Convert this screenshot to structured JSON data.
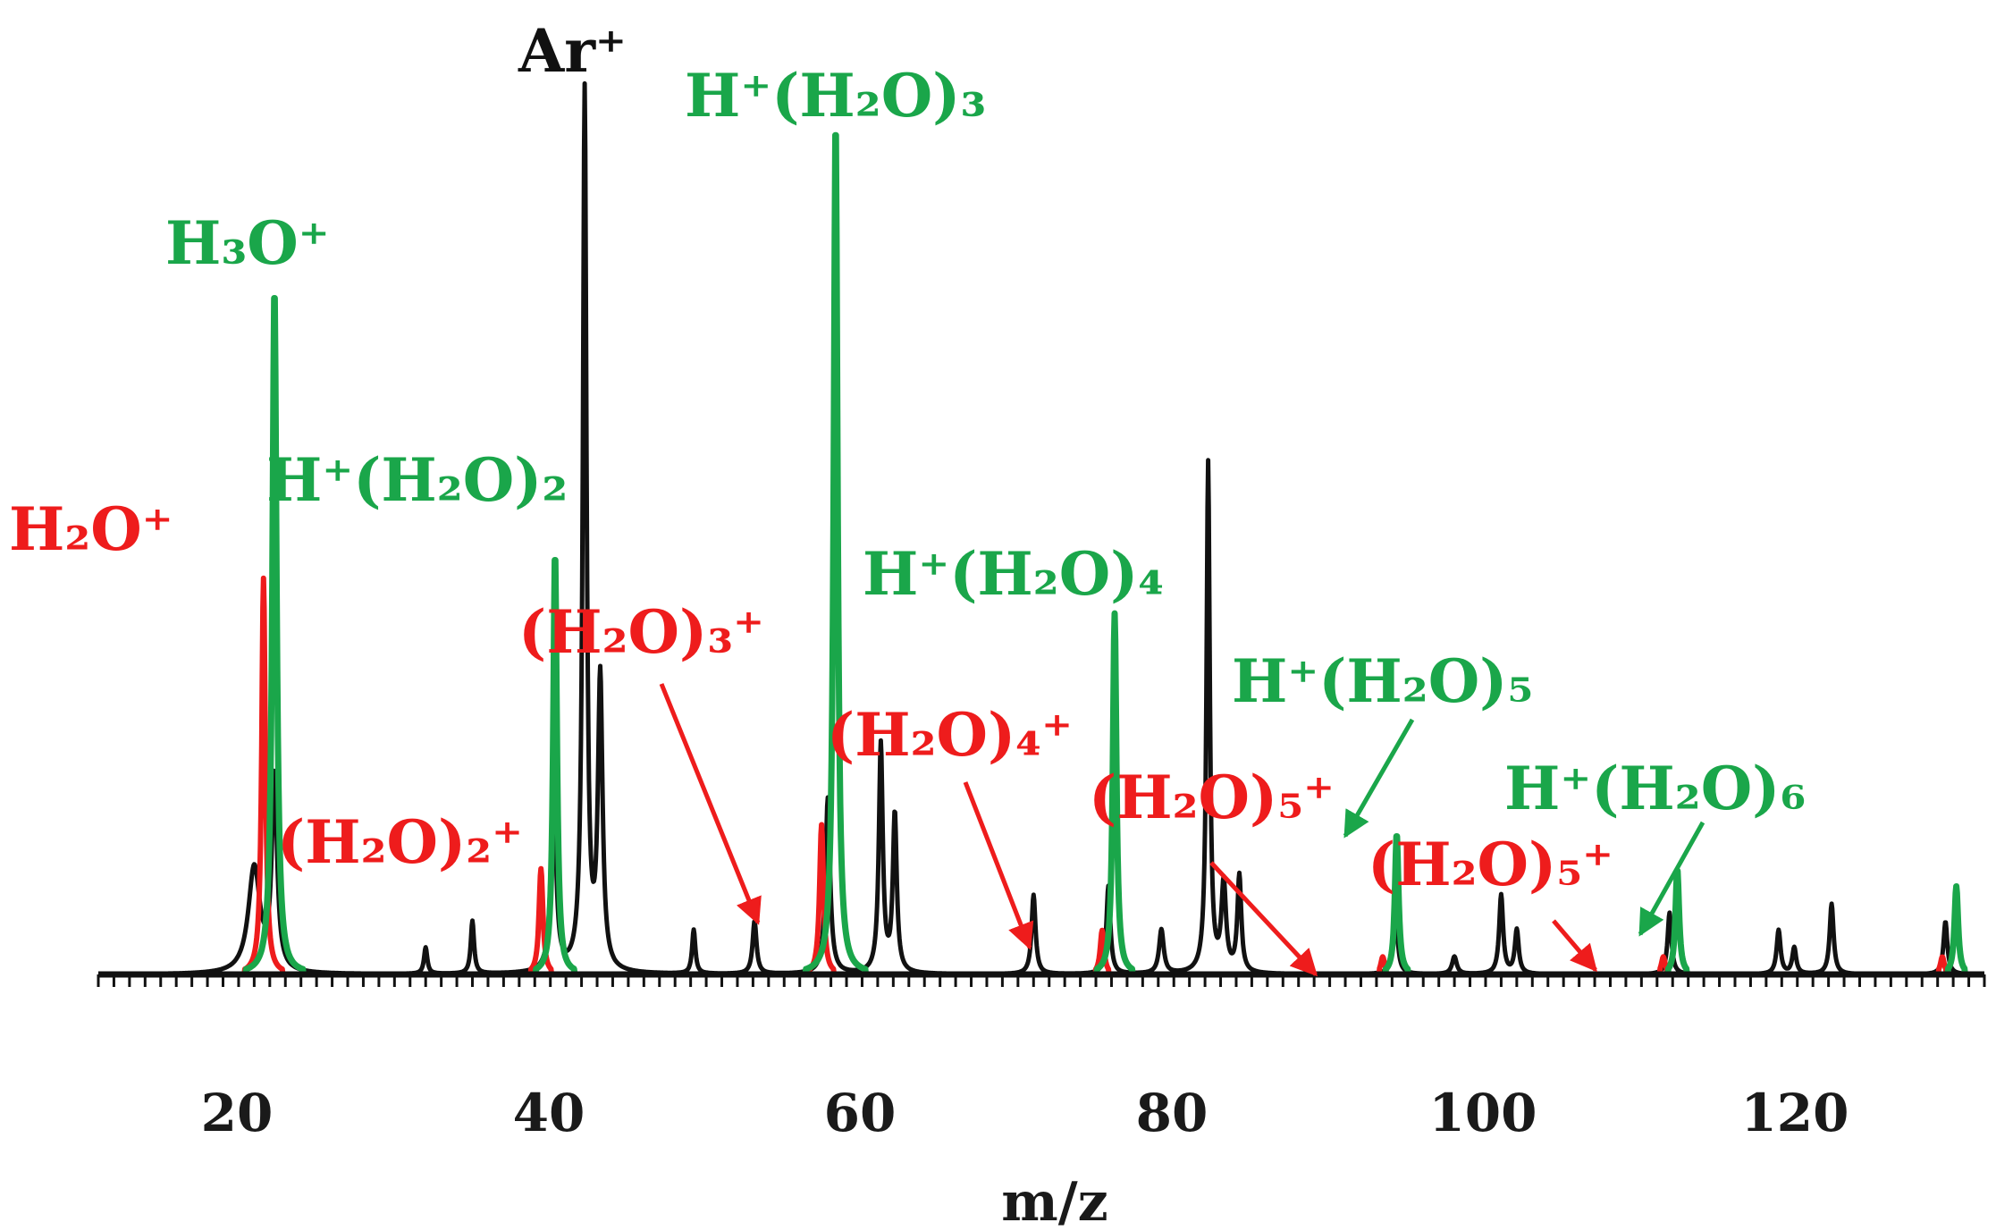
{
  "colors": {
    "black": "#111111",
    "green": "#1aa64a",
    "red": "#ee1c1c",
    "background": "#ffffff"
  },
  "chart_data": {
    "type": "line",
    "title": "",
    "xlabel": "m/z",
    "ylabel": "",
    "xlim": [
      10,
      131
    ],
    "ylim": [
      0,
      100
    ],
    "grid": false,
    "legend": "none",
    "x_ticks": [
      20,
      40,
      60,
      80,
      100,
      120
    ],
    "x_tick_labels": [
      "20",
      "40",
      "60",
      "80",
      "100",
      "120"
    ],
    "series": [
      {
        "color": "black",
        "peaks": [
          {
            "x": 20.0,
            "y": 12,
            "w": 0.9
          },
          {
            "x": 21.3,
            "y": 22,
            "w": 0.4
          },
          {
            "x": 31.0,
            "y": 3,
            "w": 0.25
          },
          {
            "x": 34.0,
            "y": 6,
            "w": 0.25
          },
          {
            "x": 39.2,
            "y": 24,
            "w": 0.35
          },
          {
            "x": 41.2,
            "y": 100,
            "w": 0.28
          },
          {
            "x": 42.2,
            "y": 33,
            "w": 0.35
          },
          {
            "x": 48.2,
            "y": 5,
            "w": 0.25
          },
          {
            "x": 52.1,
            "y": 6,
            "w": 0.3
          },
          {
            "x": 56.8,
            "y": 20,
            "w": 0.35
          },
          {
            "x": 60.2,
            "y": 26,
            "w": 0.3
          },
          {
            "x": 61.1,
            "y": 18,
            "w": 0.3
          },
          {
            "x": 70.0,
            "y": 9,
            "w": 0.3
          },
          {
            "x": 74.8,
            "y": 10,
            "w": 0.3
          },
          {
            "x": 78.2,
            "y": 5,
            "w": 0.35
          },
          {
            "x": 81.2,
            "y": 58,
            "w": 0.25
          },
          {
            "x": 82.2,
            "y": 10,
            "w": 0.35
          },
          {
            "x": 83.2,
            "y": 11,
            "w": 0.3
          },
          {
            "x": 93.2,
            "y": 9,
            "w": 0.3
          },
          {
            "x": 97.0,
            "y": 2,
            "w": 0.35
          },
          {
            "x": 100.0,
            "y": 9,
            "w": 0.3
          },
          {
            "x": 101.0,
            "y": 5,
            "w": 0.3
          },
          {
            "x": 110.8,
            "y": 7,
            "w": 0.3
          },
          {
            "x": 117.8,
            "y": 5,
            "w": 0.3
          },
          {
            "x": 118.8,
            "y": 3,
            "w": 0.3
          },
          {
            "x": 121.2,
            "y": 8,
            "w": 0.3
          },
          {
            "x": 128.5,
            "y": 6,
            "w": 0.3
          }
        ]
      },
      {
        "color": "green",
        "peaks": [
          {
            "x": 21.3,
            "y": 78,
            "w": 0.32
          },
          {
            "x": 39.3,
            "y": 48,
            "w": 0.28
          },
          {
            "x": 57.3,
            "y": 97,
            "w": 0.3
          },
          {
            "x": 75.2,
            "y": 41,
            "w": 0.28
          },
          {
            "x": 93.3,
            "y": 16,
            "w": 0.28
          },
          {
            "x": 111.3,
            "y": 12,
            "w": 0.28
          },
          {
            "x": 129.2,
            "y": 10,
            "w": 0.28
          }
        ]
      },
      {
        "color": "red",
        "peaks": [
          {
            "x": 20.6,
            "y": 45,
            "w": 0.28
          },
          {
            "x": 38.4,
            "y": 12,
            "w": 0.3
          },
          {
            "x": 56.4,
            "y": 17,
            "w": 0.3
          },
          {
            "x": 74.4,
            "y": 5,
            "w": 0.3
          },
          {
            "x": 92.4,
            "y": 2,
            "w": 0.3
          },
          {
            "x": 110.4,
            "y": 2,
            "w": 0.3
          },
          {
            "x": 128.3,
            "y": 2,
            "w": 0.3
          }
        ]
      }
    ],
    "annotations": [
      {
        "id": "ann-ar",
        "text": "Ar⁺",
        "color": "black"
      },
      {
        "id": "ann-h3o",
        "text": "H₃O⁺",
        "color": "green"
      },
      {
        "id": "ann-h2o",
        "text": "H₂O⁺",
        "color": "red"
      },
      {
        "id": "ann-hh2o2",
        "text": "H⁺(H₂O)₂",
        "color": "green"
      },
      {
        "id": "ann-h2o2",
        "text": "(H₂O)₂⁺",
        "color": "red"
      },
      {
        "id": "ann-hh2o3",
        "text": "H⁺(H₂O)₃",
        "color": "green"
      },
      {
        "id": "ann-h2o3",
        "text": "(H₂O)₃⁺",
        "color": "red"
      },
      {
        "id": "ann-hh2o4",
        "text": "H⁺(H₂O)₄",
        "color": "green"
      },
      {
        "id": "ann-h2o4",
        "text": "(H₂O)₄⁺",
        "color": "red"
      },
      {
        "id": "ann-hh2o5",
        "text": "H⁺(H₂O)₅",
        "color": "green"
      },
      {
        "id": "ann-h2o5a",
        "text": "(H₂O)₅⁺",
        "color": "red"
      },
      {
        "id": "ann-hh2o6",
        "text": "H⁺(H₂O)₆",
        "color": "green"
      },
      {
        "id": "ann-h2o5b",
        "text": "(H₂O)₅⁺",
        "color": "red"
      }
    ]
  }
}
